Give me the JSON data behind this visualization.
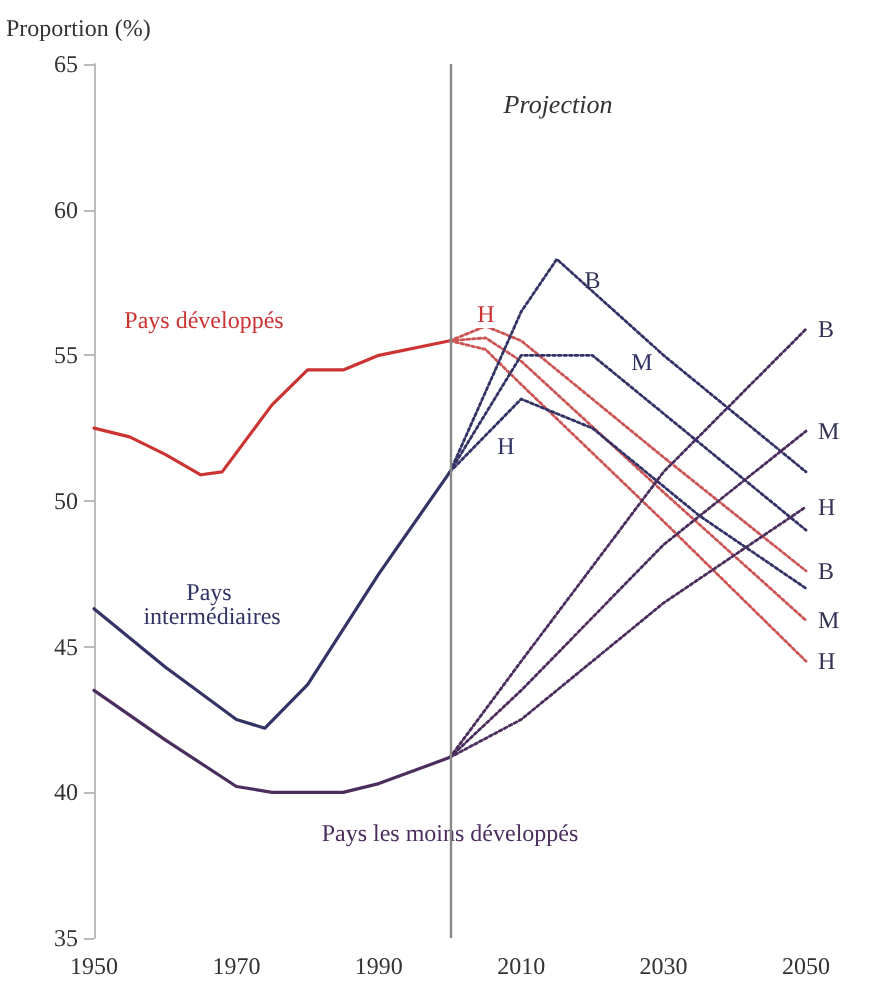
{
  "chart_data": {
    "type": "line",
    "ylabel": "Proportion (%)",
    "xlim": [
      1950,
      2050
    ],
    "xticks": [
      1950,
      1970,
      1990,
      2010,
      2030,
      2050
    ],
    "ylim": [
      35,
      65
    ],
    "yticks": [
      35,
      40,
      45,
      50,
      55,
      60,
      65
    ],
    "grid": false,
    "marker": "none",
    "ref_lines": [
      {
        "axis": "x",
        "value": 2000,
        "color": "#888888"
      }
    ],
    "series": [
      {
        "color": "#cc3333",
        "line_style": "solid",
        "x": [
          1950,
          1955,
          1960,
          1965,
          1968,
          1975,
          1980,
          1985,
          1990,
          2000
        ],
        "values": [
          52.5,
          52.2,
          51.6,
          50.9,
          51.0,
          53.3,
          54.5,
          54.5,
          55.0,
          55.5
        ]
      },
      {
        "color": "#333366",
        "line_style": "solid",
        "x": [
          1950,
          1960,
          1970,
          1974,
          1980,
          1990,
          2000
        ],
        "values": [
          46.3,
          44.3,
          42.5,
          42.2,
          43.7,
          47.5,
          51.0
        ]
      },
      {
        "color": "#4b2d5e",
        "line_style": "solid",
        "x": [
          1950,
          1960,
          1970,
          1975,
          1985,
          1990,
          2000
        ],
        "values": [
          43.5,
          41.8,
          40.2,
          40.0,
          40.0,
          40.3,
          41.2
        ]
      },
      {
        "color": "#cc5555",
        "line_style": "dotted",
        "x": [
          2000,
          2005,
          2010,
          2030,
          2050
        ],
        "values": [
          55.5,
          56.0,
          55.5,
          51.5,
          47.6
        ]
      },
      {
        "color": "#cc5555",
        "line_style": "dotted",
        "x": [
          2000,
          2005,
          2010,
          2030,
          2050
        ],
        "values": [
          55.5,
          55.6,
          54.8,
          50.3,
          45.9
        ]
      },
      {
        "color": "#cc5555",
        "line_style": "dotted",
        "x": [
          2000,
          2005,
          2010,
          2030,
          2050
        ],
        "values": [
          55.5,
          55.2,
          54.0,
          49.3,
          44.5
        ]
      },
      {
        "color": "#333366",
        "line_style": "dotted",
        "x": [
          2000,
          2010,
          2015,
          2030,
          2050
        ],
        "values": [
          51.0,
          56.5,
          58.3,
          55.0,
          51.0
        ]
      },
      {
        "color": "#333366",
        "line_style": "dotted",
        "x": [
          2000,
          2010,
          2020,
          2035,
          2050
        ],
        "values": [
          51.0,
          55.0,
          55.0,
          52.0,
          49.0
        ]
      },
      {
        "color": "#333366",
        "line_style": "dotted",
        "x": [
          2000,
          2010,
          2020,
          2035,
          2050
        ],
        "values": [
          51.0,
          53.5,
          52.5,
          49.5,
          47.0
        ]
      },
      {
        "color": "#4b2d5e",
        "line_style": "dotted",
        "x": [
          2000,
          2010,
          2030,
          2050
        ],
        "values": [
          41.2,
          44.5,
          51.0,
          55.9
        ]
      },
      {
        "color": "#4b2d5e",
        "line_style": "dotted",
        "x": [
          2000,
          2010,
          2030,
          2050
        ],
        "values": [
          41.2,
          43.5,
          48.5,
          52.4
        ]
      },
      {
        "color": "#4b2d5e",
        "line_style": "dotted",
        "x": [
          2000,
          2010,
          2030,
          2050
        ],
        "values": [
          41.2,
          42.5,
          46.5,
          49.8
        ]
      }
    ],
    "annotations": [
      "Pays développés",
      "Pays intermédiaires",
      {
        "text": "Pays les moins développés",
        "x": 2000,
        "y": 38.6
      },
      "Projection",
      {
        "text": "B",
        "x": 2020,
        "y": 57.6
      },
      "M",
      "H",
      "H",
      {
        "text": "B",
        "x": 2050,
        "y": 55.9
      },
      {
        "text": "M",
        "x": 2050,
        "y": 52.4
      },
      {
        "text": "H",
        "x": 2050,
        "y": 49.8
      },
      {
        "text": "B",
        "x": 2050,
        "y": 47.6
      },
      {
        "text": "M",
        "x": 2050,
        "y": 45.9
      },
      {
        "text": "H",
        "x": 2050,
        "y": 44.5
      }
    ]
  }
}
